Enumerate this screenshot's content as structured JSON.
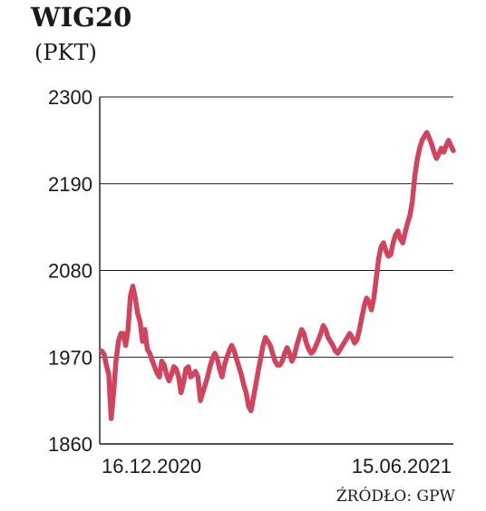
{
  "header": {
    "title": "WIG20",
    "unit": "(PKT)"
  },
  "source": "ŹRÓDŁO: GPW",
  "colors": {
    "line": "#d2435e",
    "grid": "#1a1a1a",
    "text": "#1a1a1a"
  },
  "chart_data": {
    "type": "line",
    "title": "WIG20",
    "ylabel": "(PKT)",
    "ylim": [
      1860,
      2300
    ],
    "yticks": [
      1860,
      1970,
      2080,
      2190,
      2300
    ],
    "ytick_labels": [
      "1860",
      "1970",
      "2080",
      "2190",
      "2300"
    ],
    "xlabels": [
      "16.12.2020",
      "15.06.2021"
    ],
    "grid": "horizontal",
    "series": [
      {
        "values": [
          1978,
          1974,
          1960,
          1948,
          1892,
          1925,
          1965,
          1990,
          2000,
          2000,
          1985,
          2005,
          2048,
          2060,
          2045,
          2025,
          2015,
          1990,
          2005,
          1980,
          1975,
          1966,
          1958,
          1950,
          1945,
          1965,
          1960,
          1948,
          1940,
          1948,
          1958,
          1955,
          1945,
          1925,
          1938,
          1955,
          1958,
          1945,
          1948,
          1952,
          1945,
          1915,
          1925,
          1935,
          1945,
          1958,
          1968,
          1975,
          1968,
          1955,
          1945,
          1960,
          1970,
          1978,
          1985,
          1978,
          1968,
          1958,
          1948,
          1935,
          1925,
          1908,
          1902,
          1918,
          1935,
          1952,
          1968,
          1985,
          1995,
          1990,
          1985,
          1975,
          1965,
          1960,
          1960,
          1965,
          1975,
          1982,
          1975,
          1965,
          1972,
          1985,
          1995,
          2005,
          2000,
          1988,
          1980,
          1975,
          1978,
          1985,
          1992,
          2000,
          2010,
          2005,
          1995,
          1990,
          1985,
          1978,
          1975,
          1980,
          1985,
          1990,
          1995,
          2000,
          1995,
          1988,
          1992,
          2005,
          2020,
          2035,
          2045,
          2040,
          2030,
          2045,
          2070,
          2095,
          2110,
          2115,
          2105,
          2098,
          2100,
          2115,
          2125,
          2130,
          2120,
          2115,
          2128,
          2140,
          2150,
          2168,
          2200,
          2220,
          2235,
          2245,
          2250,
          2255,
          2248,
          2240,
          2230,
          2222,
          2228,
          2235,
          2230,
          2238,
          2245,
          2238,
          2232
        ]
      }
    ]
  }
}
